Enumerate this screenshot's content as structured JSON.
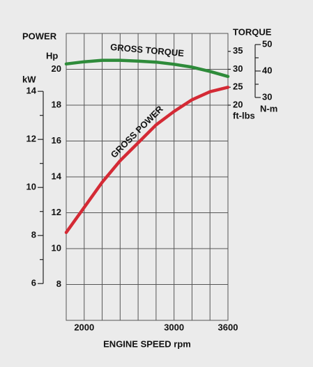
{
  "chart_data": {
    "type": "line",
    "x_label": "ENGINE SPEED rpm",
    "y_label": "POWER",
    "y_unit": "Hp",
    "y2_label": "TORQUE",
    "y2_unit": "ft-lbs",
    "x": [
      1800,
      2000,
      2200,
      2400,
      2600,
      2800,
      3000,
      3200,
      3400,
      3600
    ],
    "xlim": [
      1800,
      3600
    ],
    "xticks": [
      2000,
      3000,
      3600
    ],
    "xgrid": [
      1800,
      2000,
      2200,
      2400,
      2600,
      2800,
      3000,
      3200,
      3400,
      3600
    ],
    "ylim": [
      6,
      22
    ],
    "yticks": [
      8,
      10,
      12,
      14,
      16,
      18,
      20
    ],
    "y2lim": [
      -40,
      40
    ],
    "y2ticks": [
      20,
      25,
      30,
      35
    ],
    "grid": true,
    "kw_axis": {
      "label": "kW",
      "lim": [
        4.47,
        16.41
      ],
      "ticks": [
        6,
        8,
        10,
        12,
        14
      ],
      "minor_ticks": [
        7,
        9,
        11,
        13
      ]
    },
    "nm_axis": {
      "label": "N-m",
      "lim": [
        -54.2,
        54.2
      ],
      "ticks": [
        30,
        40,
        50
      ],
      "minor_ticks": [
        35,
        45
      ]
    },
    "series": [
      {
        "name": "GROSS POWER",
        "color": "#d42a35",
        "axis": "y",
        "values": [
          10.9,
          12.3,
          13.7,
          14.9,
          15.9,
          16.9,
          17.65,
          18.3,
          18.75,
          19.0
        ]
      },
      {
        "name": "GROSS TORQUE",
        "color": "#2e8b3a",
        "axis": "y2",
        "values": [
          31.5,
          32.1,
          32.5,
          32.5,
          32.3,
          32.0,
          31.4,
          30.6,
          29.4,
          28.0
        ]
      }
    ]
  }
}
